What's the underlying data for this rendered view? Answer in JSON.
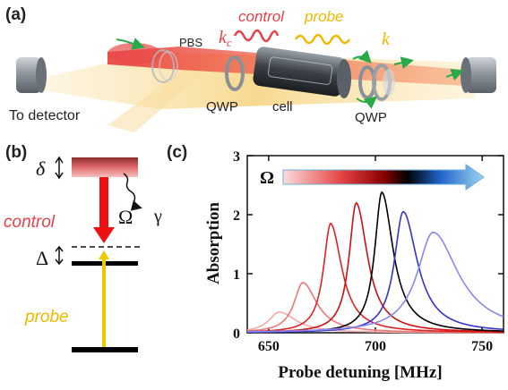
{
  "panels": {
    "a": {
      "tag": "(a)",
      "labels": {
        "control": "control",
        "probe": "probe",
        "kc": "k",
        "kc_sub": "c",
        "k": "k",
        "pbs": "PBS",
        "qwp_left": "QWP",
        "cell": "cell",
        "qwp_right": "QWP",
        "to_detector": "To detector"
      }
    },
    "b": {
      "tag": "(b)",
      "labels": {
        "delta": "δ",
        "control": "control",
        "omega": "Ω",
        "gamma": "γ",
        "Delta": "Δ",
        "probe": "probe"
      }
    },
    "c": {
      "tag": "(c)",
      "omega_label": "Ω"
    }
  },
  "colors": {
    "control": "#e8404a",
    "probe": "#f0b800",
    "beam_red": "#f06a4a",
    "beam_yellow": "#f7d070",
    "arrow_green": "#2aa84a",
    "level": "#000000"
  },
  "chart_data": {
    "type": "line",
    "xlabel": "Probe detuning [MHz]",
    "ylabel": "Absorption",
    "xlim": [
      640,
      760
    ],
    "ylim": [
      0,
      3
    ],
    "xticks": [
      650,
      700,
      750
    ],
    "yticks": [
      0,
      1,
      2,
      3
    ],
    "grid": false,
    "legend": "colorbar Ω top-left",
    "series": [
      {
        "center": 655,
        "peak": 0.35,
        "width": 6,
        "color": "#f5a8a8"
      },
      {
        "center": 666,
        "peak": 0.85,
        "width": 5,
        "color": "#ee7777"
      },
      {
        "center": 679,
        "peak": 1.85,
        "width": 4,
        "color": "#dd2222"
      },
      {
        "center": 691,
        "peak": 2.2,
        "width": 4,
        "color": "#cc1111"
      },
      {
        "center": 703,
        "peak": 2.38,
        "width": 4,
        "color": "#000000"
      },
      {
        "center": 713,
        "peak": 2.05,
        "width": 5,
        "color": "#3333cc"
      },
      {
        "center": 727,
        "peak": 1.7,
        "width": 9,
        "color": "#8888ee"
      }
    ]
  }
}
